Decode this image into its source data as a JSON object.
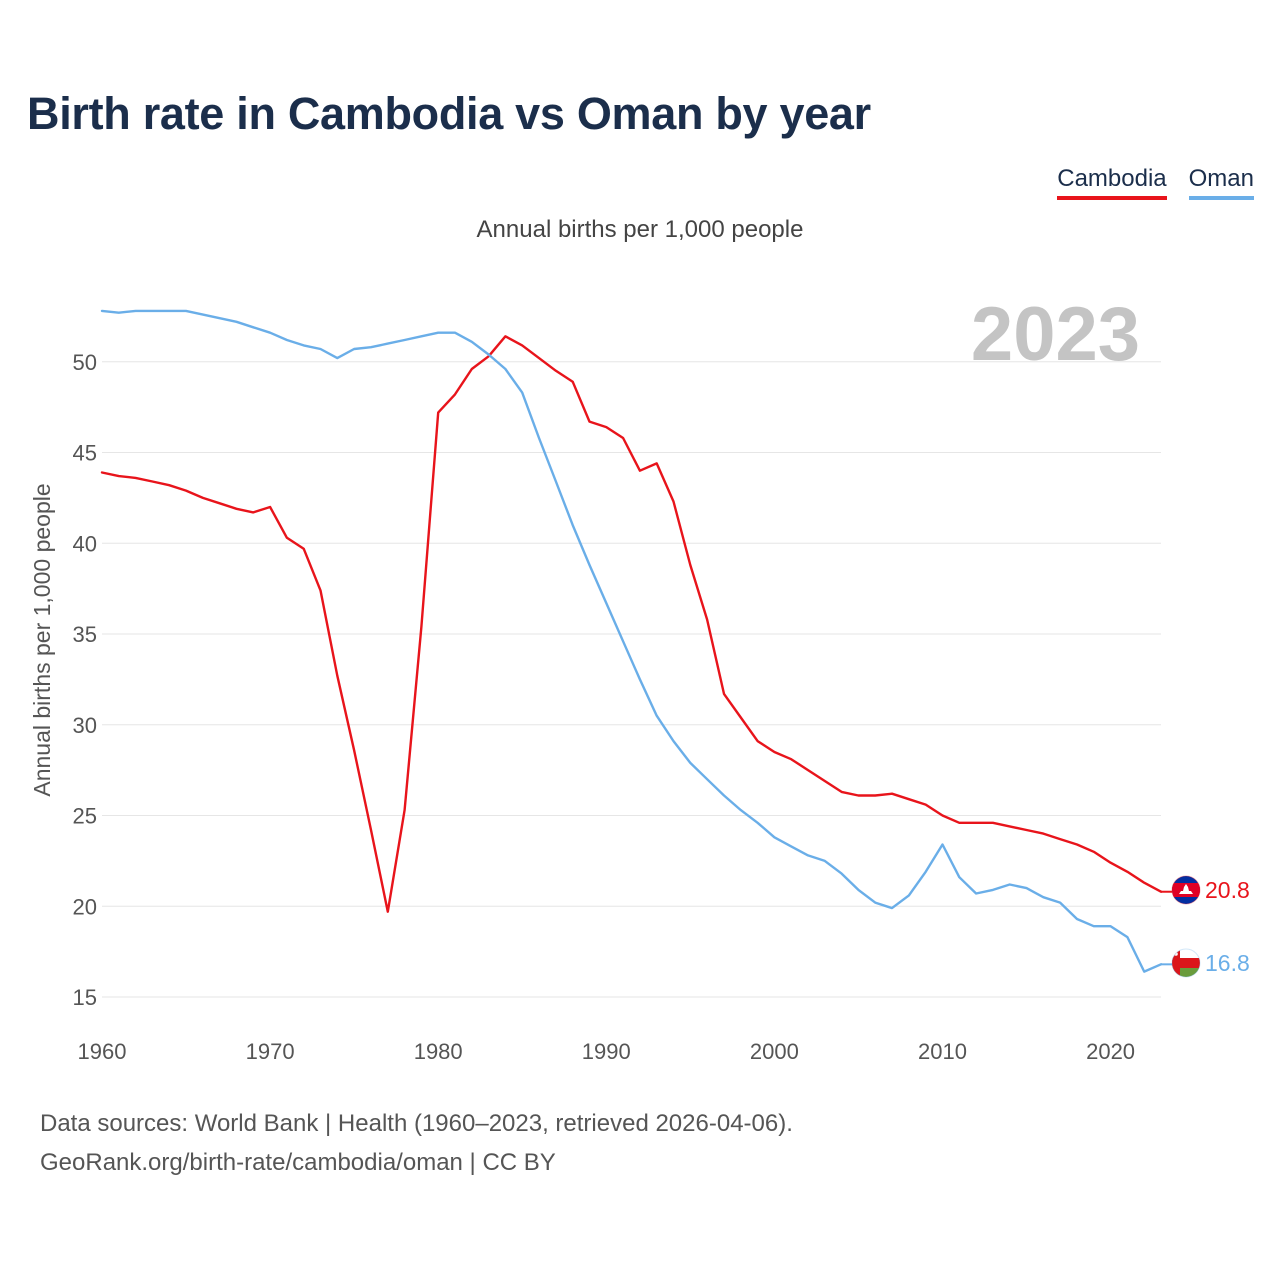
{
  "title": "Birth rate in Cambodia vs Oman by year",
  "subtitle": "Annual births per 1,000 people",
  "footer": {
    "line1": "Data sources: World Bank | Health (1960–2023, retrieved 2026-04-06).",
    "line2": "GeoRank.org/birth-rate/cambodia/oman | CC BY"
  },
  "chart_data": {
    "type": "line",
    "title": "Birth rate in Cambodia vs Oman by year",
    "ylabel": "Annual births per 1,000 people",
    "xlabel": "",
    "watermark_year": "2023",
    "xlim": [
      1960,
      2023
    ],
    "ylim": [
      15,
      53
    ],
    "x_ticks": [
      1960,
      1970,
      1980,
      1990,
      2000,
      2010,
      2020
    ],
    "y_ticks": [
      15,
      20,
      25,
      30,
      35,
      40,
      45,
      50
    ],
    "grid": true,
    "legend_position": "top-right",
    "x": [
      1960,
      1961,
      1962,
      1963,
      1964,
      1965,
      1966,
      1967,
      1968,
      1969,
      1970,
      1971,
      1972,
      1973,
      1974,
      1975,
      1976,
      1977,
      1978,
      1979,
      1980,
      1981,
      1982,
      1983,
      1984,
      1985,
      1986,
      1987,
      1988,
      1989,
      1990,
      1991,
      1992,
      1993,
      1994,
      1995,
      1996,
      1997,
      1998,
      1999,
      2000,
      2001,
      2002,
      2003,
      2004,
      2005,
      2006,
      2007,
      2008,
      2009,
      2010,
      2011,
      2012,
      2013,
      2014,
      2015,
      2016,
      2017,
      2018,
      2019,
      2020,
      2021,
      2022,
      2023
    ],
    "series": [
      {
        "name": "Cambodia",
        "color": "#e8141b",
        "end_label": "20.8",
        "values": [
          43.9,
          43.7,
          43.6,
          43.4,
          43.2,
          42.9,
          42.5,
          42.2,
          41.9,
          41.7,
          42.0,
          40.3,
          39.7,
          37.4,
          32.7,
          28.6,
          24.2,
          19.7,
          25.3,
          35.4,
          47.2,
          48.2,
          49.6,
          50.3,
          51.4,
          50.9,
          50.2,
          49.5,
          48.9,
          46.7,
          46.4,
          45.8,
          44.0,
          44.4,
          42.3,
          38.8,
          35.8,
          31.7,
          30.4,
          29.1,
          28.5,
          28.1,
          27.5,
          26.9,
          26.3,
          26.1,
          26.1,
          26.2,
          25.9,
          25.6,
          25.0,
          24.6,
          24.6,
          24.6,
          24.4,
          24.2,
          24.0,
          23.7,
          23.4,
          23.0,
          22.4,
          21.9,
          21.3,
          20.8
        ]
      },
      {
        "name": "Oman",
        "color": "#6aaee8",
        "end_label": "16.8",
        "values": [
          52.8,
          52.7,
          52.8,
          52.8,
          52.8,
          52.8,
          52.6,
          52.4,
          52.2,
          51.9,
          51.6,
          51.2,
          50.9,
          50.7,
          50.2,
          50.7,
          50.8,
          51.0,
          51.2,
          51.4,
          51.6,
          51.6,
          51.1,
          50.4,
          49.6,
          48.3,
          45.8,
          43.4,
          41.0,
          38.8,
          36.7,
          34.6,
          32.5,
          30.5,
          29.1,
          27.9,
          27.0,
          26.1,
          25.3,
          24.6,
          23.8,
          23.3,
          22.8,
          22.5,
          21.8,
          20.9,
          20.2,
          19.9,
          20.6,
          21.9,
          23.4,
          21.6,
          20.7,
          20.9,
          21.2,
          21.0,
          20.5,
          20.2,
          19.3,
          18.9,
          18.9,
          18.3,
          16.4,
          16.8
        ]
      }
    ]
  }
}
